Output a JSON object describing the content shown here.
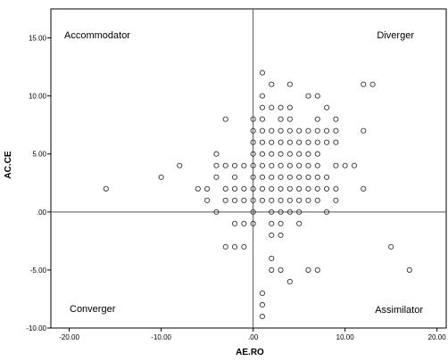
{
  "chart_data": {
    "type": "scatter",
    "title": "",
    "xlabel": "AE.RO",
    "ylabel": "AC.CE",
    "xlim": [
      -22,
      21
    ],
    "ylim": [
      -10,
      17.5
    ],
    "x_ticks": [
      {
        "value": -20,
        "label": "-20.00"
      },
      {
        "value": -10,
        "label": "-10.00"
      },
      {
        "value": 0,
        "label": ".00"
      },
      {
        "value": 10,
        "label": "10.00"
      },
      {
        "value": 20,
        "label": "20.00"
      }
    ],
    "y_ticks": [
      {
        "value": 15,
        "label": "15.00"
      },
      {
        "value": 10,
        "label": "10.00"
      },
      {
        "value": 5,
        "label": "5.00"
      },
      {
        "value": 0,
        "label": ".00"
      },
      {
        "value": -5,
        "label": "-5.00"
      },
      {
        "value": -10,
        "label": "-10.00"
      }
    ],
    "reference_lines": {
      "x": 0,
      "y": 0
    },
    "quadrant_labels": {
      "top_left": "Accommodator",
      "top_right": "Diverger",
      "bottom_left": "Converger",
      "bottom_right": "Assimilator"
    },
    "grid": false,
    "marker": "open-circle",
    "points": [
      [
        1,
        12
      ],
      [
        2,
        11
      ],
      [
        4,
        11
      ],
      [
        12,
        11
      ],
      [
        13,
        11
      ],
      [
        1,
        10
      ],
      [
        6,
        10
      ],
      [
        7,
        10
      ],
      [
        1,
        9
      ],
      [
        2,
        9
      ],
      [
        3,
        9
      ],
      [
        4,
        9
      ],
      [
        8,
        9
      ],
      [
        -3,
        8
      ],
      [
        0,
        8
      ],
      [
        1,
        8
      ],
      [
        3,
        8
      ],
      [
        4,
        8
      ],
      [
        7,
        8
      ],
      [
        9,
        8
      ],
      [
        0,
        7
      ],
      [
        1,
        7
      ],
      [
        2,
        7
      ],
      [
        3,
        7
      ],
      [
        4,
        7
      ],
      [
        5,
        7
      ],
      [
        6,
        7
      ],
      [
        7,
        7
      ],
      [
        8,
        7
      ],
      [
        9,
        7
      ],
      [
        12,
        7
      ],
      [
        0,
        6
      ],
      [
        1,
        6
      ],
      [
        2,
        6
      ],
      [
        3,
        6
      ],
      [
        4,
        6
      ],
      [
        5,
        6
      ],
      [
        6,
        6
      ],
      [
        7,
        6
      ],
      [
        8,
        6
      ],
      [
        9,
        6
      ],
      [
        -4,
        5
      ],
      [
        0,
        5
      ],
      [
        1,
        5
      ],
      [
        2,
        5
      ],
      [
        3,
        5
      ],
      [
        4,
        5
      ],
      [
        5,
        5
      ],
      [
        6,
        5
      ],
      [
        7,
        5
      ],
      [
        -8,
        4
      ],
      [
        -4,
        4
      ],
      [
        -3,
        4
      ],
      [
        -2,
        4
      ],
      [
        -1,
        4
      ],
      [
        0,
        4
      ],
      [
        1,
        4
      ],
      [
        2,
        4
      ],
      [
        3,
        4
      ],
      [
        4,
        4
      ],
      [
        5,
        4
      ],
      [
        6,
        4
      ],
      [
        7,
        4
      ],
      [
        9,
        4
      ],
      [
        10,
        4
      ],
      [
        11,
        4
      ],
      [
        -10,
        3
      ],
      [
        -4,
        3
      ],
      [
        -2,
        3
      ],
      [
        0,
        3
      ],
      [
        1,
        3
      ],
      [
        2,
        3
      ],
      [
        3,
        3
      ],
      [
        4,
        3
      ],
      [
        5,
        3
      ],
      [
        6,
        3
      ],
      [
        7,
        3
      ],
      [
        8,
        3
      ],
      [
        -16,
        2
      ],
      [
        -6,
        2
      ],
      [
        -5,
        2
      ],
      [
        -3,
        2
      ],
      [
        -2,
        2
      ],
      [
        -1,
        2
      ],
      [
        0,
        2
      ],
      [
        1,
        2
      ],
      [
        2,
        2
      ],
      [
        3,
        2
      ],
      [
        4,
        2
      ],
      [
        5,
        2
      ],
      [
        6,
        2
      ],
      [
        7,
        2
      ],
      [
        8,
        2
      ],
      [
        9,
        2
      ],
      [
        12,
        2
      ],
      [
        -5,
        1
      ],
      [
        -3,
        1
      ],
      [
        -2,
        1
      ],
      [
        -1,
        1
      ],
      [
        0,
        1
      ],
      [
        1,
        1
      ],
      [
        2,
        1
      ],
      [
        3,
        1
      ],
      [
        4,
        1
      ],
      [
        5,
        1
      ],
      [
        6,
        1
      ],
      [
        7,
        1
      ],
      [
        9,
        1
      ],
      [
        -4,
        0
      ],
      [
        0,
        0
      ],
      [
        2,
        0
      ],
      [
        3,
        0
      ],
      [
        4,
        0
      ],
      [
        5,
        0
      ],
      [
        8,
        0
      ],
      [
        -2,
        -1
      ],
      [
        -1,
        -1
      ],
      [
        0,
        -1
      ],
      [
        2,
        -1
      ],
      [
        3,
        -1
      ],
      [
        5,
        -1
      ],
      [
        2,
        -2
      ],
      [
        3,
        -2
      ],
      [
        -3,
        -3
      ],
      [
        -2,
        -3
      ],
      [
        -1,
        -3
      ],
      [
        15,
        -3
      ],
      [
        2,
        -4
      ],
      [
        2,
        -5
      ],
      [
        3,
        -5
      ],
      [
        6,
        -5
      ],
      [
        7,
        -5
      ],
      [
        17,
        -5
      ],
      [
        4,
        -6
      ],
      [
        1,
        -7
      ],
      [
        1,
        -8
      ],
      [
        1,
        -9
      ]
    ]
  }
}
